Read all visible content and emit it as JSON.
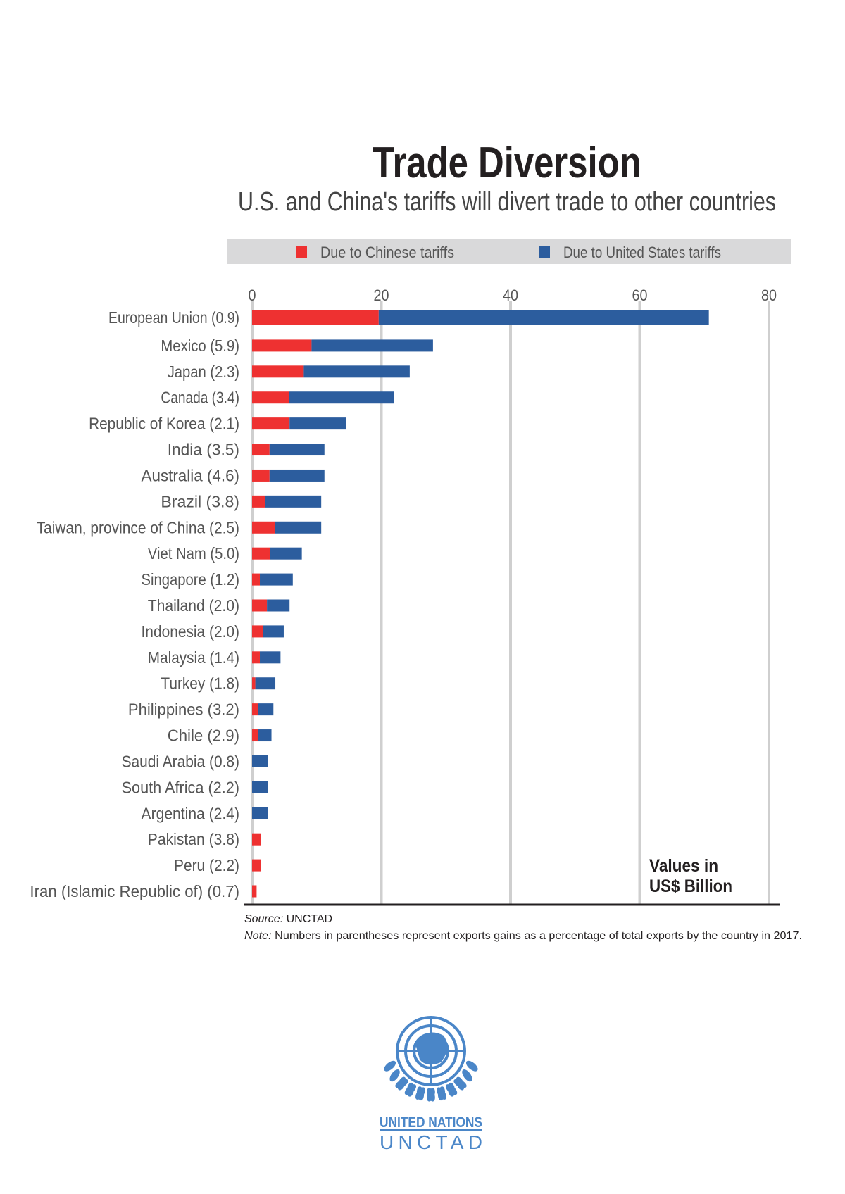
{
  "title": "Trade Diversion",
  "subtitle": "U.S. and China's tariffs will divert trade to other countries",
  "chart_data": {
    "type": "bar",
    "orientation": "horizontal",
    "stacked": true,
    "categories": [
      "European Union (0.9)",
      "Mexico (5.9)",
      "Japan (2.3)",
      "Canada (3.4)",
      "Republic of Korea (2.1)",
      "India (3.5)",
      "Australia (4.6)",
      "Brazil (3.8)",
      "Taiwan, province of China (2.5)",
      "Viet Nam (5.0)",
      "Singapore (1.2)",
      "Thailand (2.0)",
      "Indonesia (2.0)",
      "Malaysia (1.4)",
      "Turkey (1.8)",
      "Philippines (3.2)",
      "Chile (2.9)",
      "Saudi Arabia (0.8)",
      "South Africa (2.2)",
      "Argentina (2.4)",
      "Pakistan (3.8)",
      "Peru (2.2)",
      "Iran (Islamic Republic of) (0.7)"
    ],
    "series": [
      {
        "name": "Due to Chinese tariffs",
        "color": "#ee3131",
        "values": [
          19.6,
          9.2,
          8.0,
          5.7,
          5.8,
          2.7,
          2.7,
          2.0,
          3.5,
          2.8,
          1.2,
          2.3,
          1.7,
          1.2,
          0.5,
          0.9,
          0.9,
          0,
          0,
          0,
          1.4,
          1.4,
          0.7
        ]
      },
      {
        "name": "Due to United States tariffs",
        "color": "#2c5d9e",
        "values": [
          51.1,
          18.8,
          16.4,
          16.3,
          8.7,
          8.5,
          8.5,
          8.7,
          7.2,
          4.9,
          5.1,
          3.5,
          3.2,
          3.2,
          3.1,
          2.4,
          2.1,
          2.5,
          2.5,
          2.5,
          0,
          0,
          0
        ]
      }
    ],
    "xlim": [
      0,
      80
    ],
    "xticks": [
      0,
      20,
      40,
      60,
      80
    ],
    "grid": true,
    "legend_position": "top",
    "units_note": [
      "Values in",
      "US$ Billion"
    ]
  },
  "source_label": "Source:",
  "source_text": "UNCTAD",
  "note_label": "Note:",
  "note_text": "Numbers in parentheses represent exports gains as a percentage of total exports by the country in 2017.",
  "logo": {
    "line1": "UNITED NATIONS",
    "line2": "UNCTAD",
    "color": "#4a86c8"
  }
}
